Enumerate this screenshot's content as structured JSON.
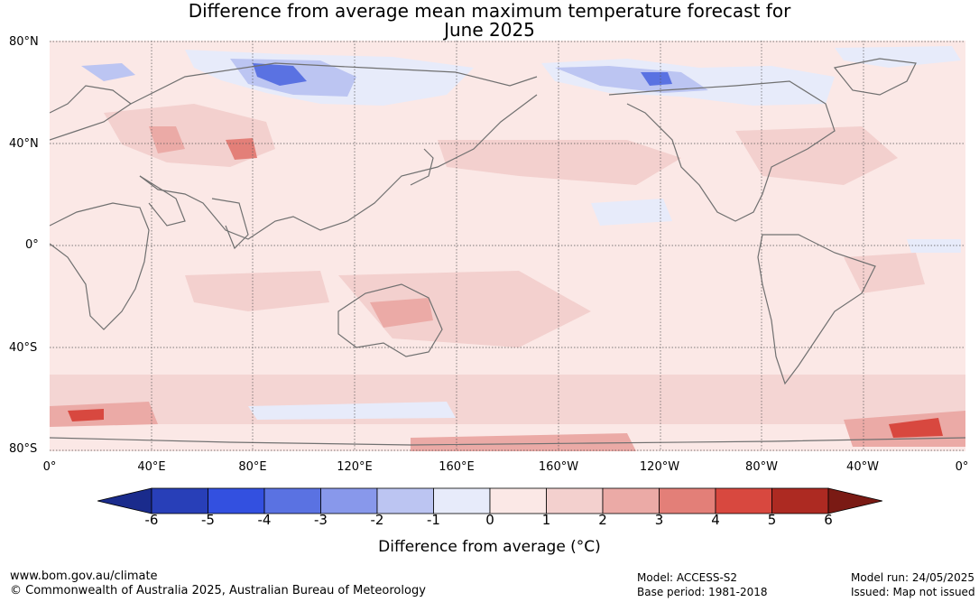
{
  "title": {
    "line1": "Difference from average mean maximum temperature forecast for",
    "line2": "June 2025"
  },
  "lat_labels": [
    "80°N",
    "40°N",
    "0°",
    "40°S",
    "80°S"
  ],
  "lon_labels": [
    "0°",
    "40°E",
    "80°E",
    "120°E",
    "160°E",
    "160°W",
    "120°W",
    "80°W",
    "40°W",
    "0°"
  ],
  "colorbar": {
    "tick_labels": [
      "-6",
      "-5",
      "-4",
      "-3",
      "-2",
      "-1",
      "0",
      "1",
      "2",
      "3",
      "4",
      "5",
      "6"
    ],
    "colors": [
      "#1a2b8c",
      "#283fb8",
      "#3350e0",
      "#5a72e2",
      "#8898eb",
      "#bcc5f2",
      "#e7ebfa",
      "#fbe8e6",
      "#f3d0ce",
      "#ebaaa6",
      "#e37f78",
      "#d8483f",
      "#ad2a22",
      "#7a1a14"
    ],
    "label": "Difference from average (°C)"
  },
  "footer": {
    "website": "www.bom.gov.au/climate",
    "copyright": "© Commonwealth of Australia 2025, Australian Bureau of Meteorology",
    "model": "Model: ACCESS-S2",
    "base_period": "Base period: 1981-2018",
    "model_run": "Model run: 24/05/2025",
    "issued": "Issued: Map not issued"
  }
}
